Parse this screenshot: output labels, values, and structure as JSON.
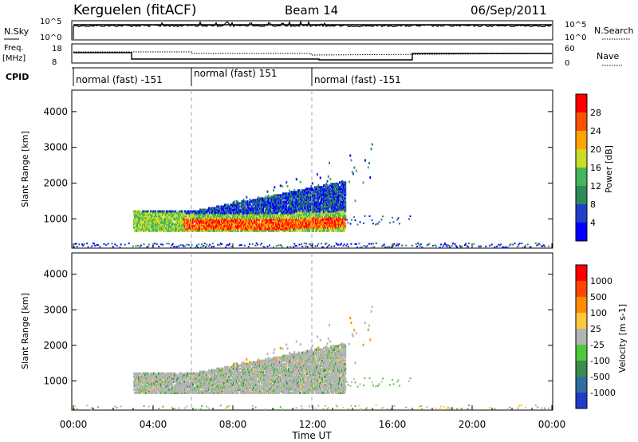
{
  "header": {
    "station": "Kerguelen (fitACF)",
    "beam": "Beam 14",
    "date": "06/Sep/2011"
  },
  "nsky_panel": {
    "left_label": "N.Sky",
    "right_label": "N.Search",
    "left_ticks": [
      "10^5",
      "10^0"
    ],
    "right_ticks": [
      "10^5",
      "10^0"
    ]
  },
  "freq_panel": {
    "left_label_1": "Freq.",
    "left_label_2": "[MHz]",
    "right_label": "Nave",
    "left_ticks": [
      "18",
      "8"
    ],
    "right_ticks": [
      "60",
      "0"
    ]
  },
  "cpid_panel": {
    "label": "CPID",
    "segments": [
      {
        "label": "normal (fast) -151",
        "start_h": 0,
        "end_h": 6
      },
      {
        "label": "normal (fast) 151",
        "start_h": 6,
        "end_h": 12
      },
      {
        "label": "normal (fast) -151",
        "start_h": 12,
        "end_h": 24
      }
    ]
  },
  "chart_data": [
    {
      "type": "heatmap",
      "name": "Power",
      "xlabel": "",
      "ylabel": "Slant Range [km]",
      "xlim": [
        0,
        24
      ],
      "ylim": [
        180,
        4600
      ],
      "yticks": [
        1000,
        2000,
        3000,
        4000
      ],
      "colorbar": {
        "label": "Power [dB]",
        "ticks": [
          "28",
          "24",
          "20",
          "16",
          "12",
          "8",
          "4"
        ],
        "colors": [
          "#0000ff",
          "#1e40c8",
          "#2e8b57",
          "#46b45a",
          "#c8dc28",
          "#ffa500",
          "#ff5000",
          "#ff0000"
        ]
      }
    },
    {
      "type": "heatmap",
      "name": "Velocity",
      "xlabel": "Time UT",
      "ylabel": "Slant Range [km]",
      "xlim": [
        0,
        24
      ],
      "ylim": [
        180,
        4600
      ],
      "yticks": [
        1000,
        2000,
        3000,
        4000
      ],
      "xticks": [
        "00:00",
        "04:00",
        "08:00",
        "12:00",
        "16:00",
        "20:00",
        "00:00"
      ],
      "colorbar": {
        "label": "Velocity [m s-1]",
        "ticks": [
          "1000",
          "500",
          "100",
          "25",
          "-25",
          "-100",
          "-500",
          "-1000"
        ],
        "colors": [
          "#1e3cc8",
          "#2e6ea0",
          "#3c8c50",
          "#50c83c",
          "#b4b4b4",
          "#ffc83c",
          "#ff8c00",
          "#ff4600",
          "#ff0000"
        ]
      }
    }
  ]
}
